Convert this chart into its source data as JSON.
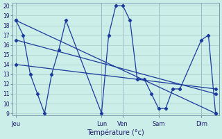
{
  "title": "Température (°c)",
  "background_color": "#cceee8",
  "grid_color": "#aacccc",
  "line_color": "#1a3a9c",
  "ylim": [
    9,
    20
  ],
  "yticks": [
    9,
    10,
    11,
    12,
    13,
    14,
    15,
    16,
    17,
    18,
    19,
    20
  ],
  "day_labels": [
    "Jeu",
    "Lun",
    "Ven",
    "Sam",
    "Dim"
  ],
  "day_x": [
    0,
    12,
    15,
    20,
    26
  ],
  "xmin": 0,
  "xmax": 28,
  "series": [
    {
      "x": [
        0,
        28
      ],
      "y": [
        18.5,
        9.0
      ]
    },
    {
      "x": [
        0,
        28
      ],
      "y": [
        16.5,
        11.0
      ]
    },
    {
      "x": [
        0,
        28
      ],
      "y": [
        14.0,
        11.5
      ]
    },
    {
      "x": [
        0,
        1,
        2,
        3,
        4,
        5,
        6,
        7,
        12,
        13,
        14,
        15,
        16,
        17,
        18,
        19,
        20,
        21,
        22,
        23,
        26,
        27,
        28
      ],
      "y": [
        18.5,
        17.0,
        13.0,
        11.0,
        9.0,
        13.0,
        15.5,
        18.5,
        9.0,
        17.0,
        20.0,
        20.0,
        18.5,
        12.5,
        12.5,
        11.0,
        9.5,
        9.5,
        11.5,
        11.5,
        16.5,
        17.0,
        9.0
      ]
    }
  ]
}
